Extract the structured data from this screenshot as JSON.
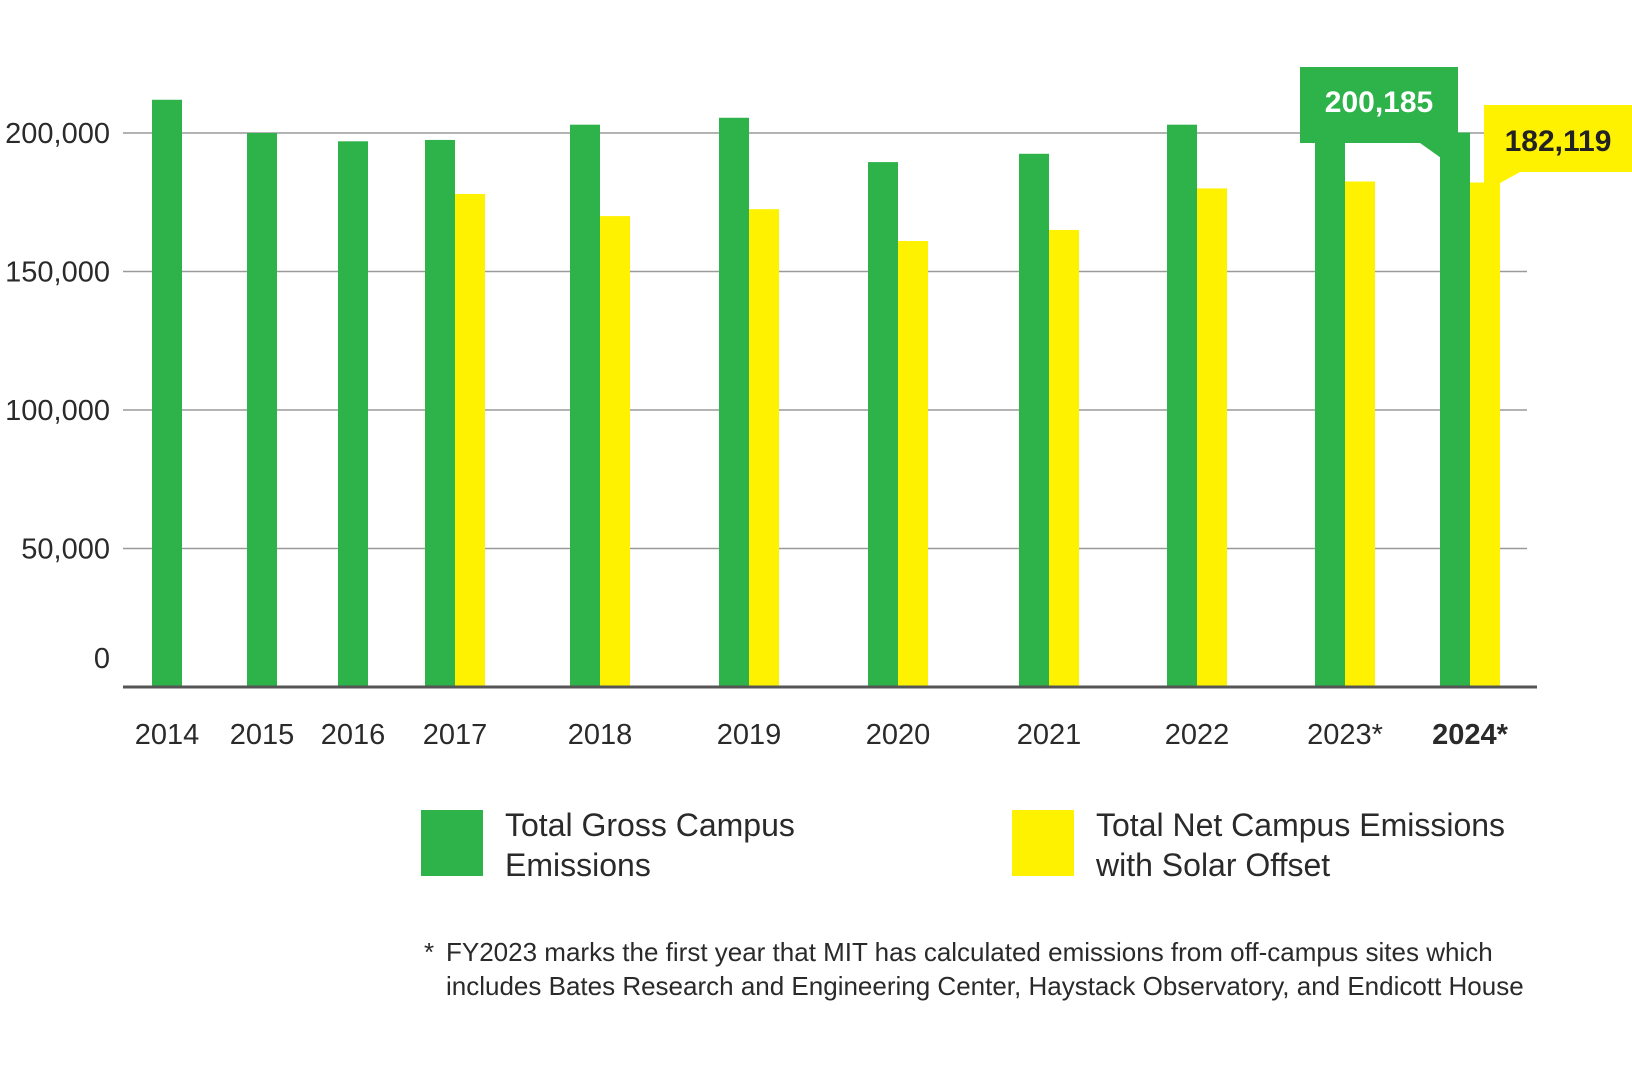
{
  "chart_data": {
    "type": "bar",
    "title": "",
    "xlabel": "",
    "ylabel": "",
    "ylim": [
      0,
      200000
    ],
    "yticks": [
      0,
      50000,
      100000,
      150000,
      200000
    ],
    "ytick_labels": [
      "0",
      "50,000",
      "100,000",
      "150,000",
      "200,000"
    ],
    "grid": true,
    "categories": [
      "2014",
      "2015",
      "2016",
      "2017",
      "2018",
      "2019",
      "2020",
      "2021",
      "2022",
      "2023*",
      "2024*"
    ],
    "series": [
      {
        "name": "Total Gross Campus Emissions",
        "color": "#2db34a",
        "values": [
          212000,
          200000,
          197000,
          197500,
          203000,
          205500,
          189500,
          192500,
          203000,
          198000,
          200185
        ]
      },
      {
        "name": "Total Net Campus Emissions with Solar Offset",
        "color": "#fff200",
        "values": [
          null,
          null,
          null,
          178000,
          170000,
          172500,
          161000,
          165000,
          180000,
          182500,
          182119
        ]
      }
    ],
    "callouts": [
      {
        "label": "200,185",
        "series": 0,
        "category": "2024*",
        "color": "#2db34a",
        "text_color": "#ffffff"
      },
      {
        "label": "182,119",
        "series": 1,
        "category": "2024*",
        "color": "#fff200",
        "text_color": "#222222"
      }
    ],
    "highlight_category": "2024*",
    "legend": {
      "placement": "bottom",
      "items": [
        {
          "label_line1": "Total Gross Campus",
          "label_line2": "Emissions",
          "color": "#2db34a"
        },
        {
          "label_line1": "Total Net Campus Emissions",
          "label_line2": "with Solar Offset",
          "color": "#fff200"
        }
      ]
    },
    "footnote": {
      "mark": "*",
      "text": "FY2023 marks the first year that MIT has calculated emissions from off-campus sites which includes Bates Research and Engineering Center, Haystack Observatory, and Endicott House"
    }
  }
}
